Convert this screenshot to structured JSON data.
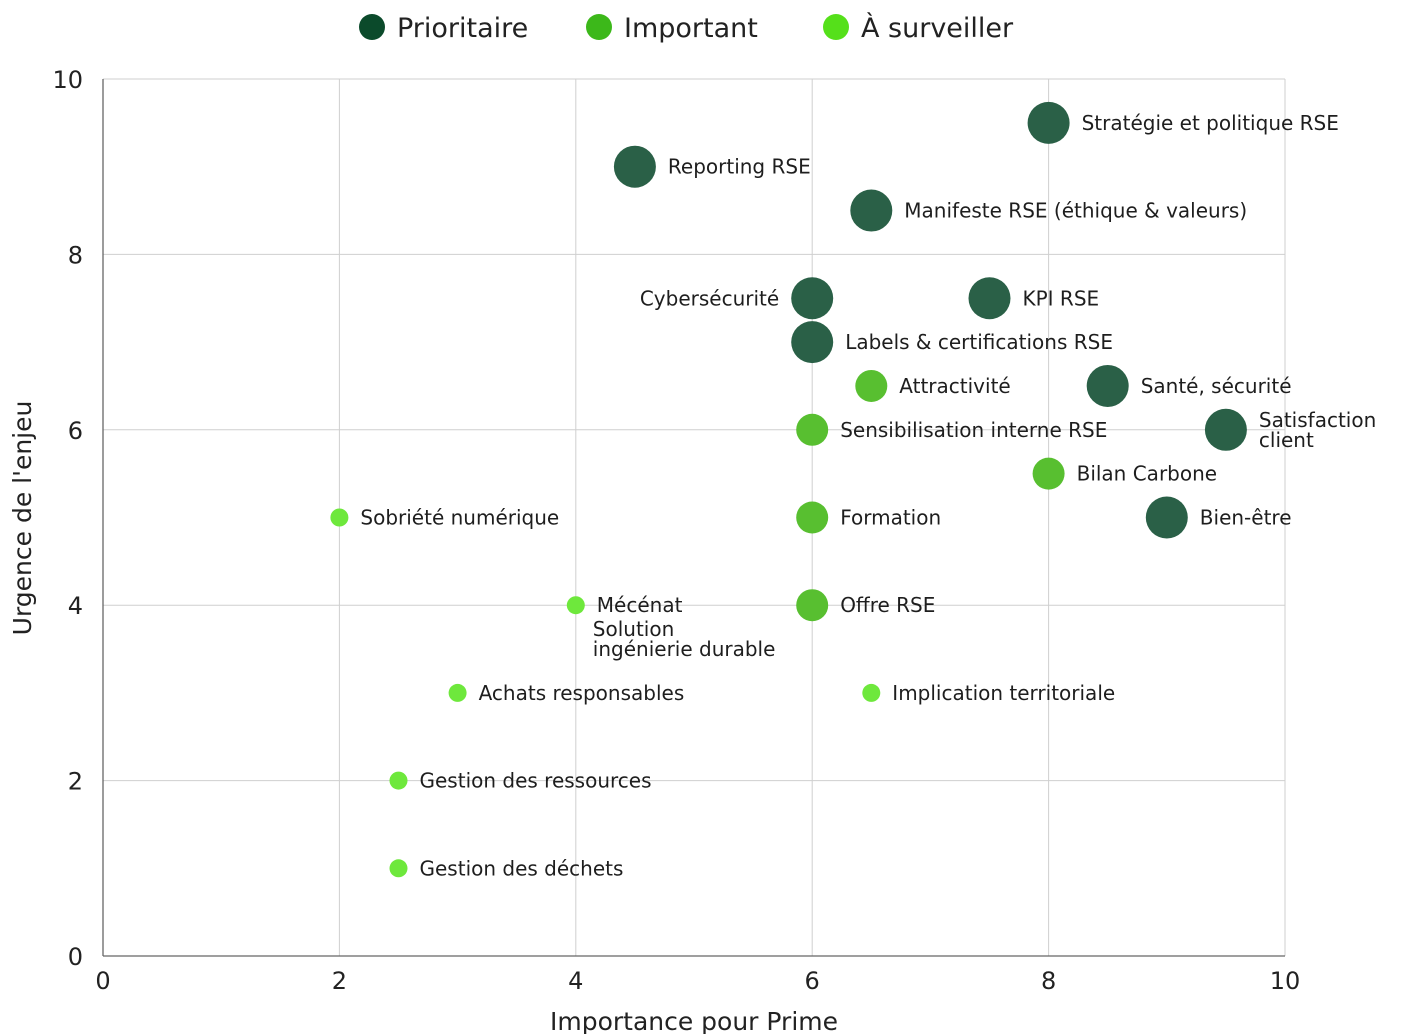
{
  "chart_data": {
    "type": "scatter",
    "xlabel": "Importance pour Prime",
    "ylabel": "Urgence de l'enjeu",
    "xlim": [
      0,
      10
    ],
    "ylim": [
      0,
      10
    ],
    "x_ticks": [
      0,
      2,
      4,
      6,
      8,
      10
    ],
    "y_ticks": [
      0,
      2,
      4,
      6,
      8,
      10
    ],
    "grid": true,
    "legend_position": "top-center",
    "categories": [
      {
        "key": "prioritaire",
        "name": "Prioritaire",
        "color": "#0b4a2b",
        "marker_color": "#2a6047",
        "bubble": "large"
      },
      {
        "key": "important",
        "name": "Important",
        "color": "#3cb81a",
        "marker_color": "#58bf30",
        "bubble": "medium"
      },
      {
        "key": "surveiller",
        "name": "À surveiller",
        "color": "#55e01a",
        "marker_color": "#6ee83c",
        "bubble": "small"
      }
    ],
    "points": [
      {
        "label": "Stratégie et politique RSE",
        "x": 8,
        "y": 9.5,
        "category": "prioritaire",
        "label_side": "right"
      },
      {
        "label": "Reporting RSE",
        "x": 4.5,
        "y": 9,
        "category": "prioritaire",
        "label_side": "right"
      },
      {
        "label": "Manifeste RSE (éthique & valeurs)",
        "x": 6.5,
        "y": 8.5,
        "category": "prioritaire",
        "label_side": "right"
      },
      {
        "label": "Cybersécurité",
        "x": 6,
        "y": 7.5,
        "category": "prioritaire",
        "label_side": "left"
      },
      {
        "label": "KPI RSE",
        "x": 7.5,
        "y": 7.5,
        "category": "prioritaire",
        "label_side": "right"
      },
      {
        "label": "Labels & certifications RSE",
        "x": 6,
        "y": 7,
        "category": "prioritaire",
        "label_side": "right"
      },
      {
        "label": "Attractivité",
        "x": 6.5,
        "y": 6.5,
        "category": "important",
        "label_side": "right"
      },
      {
        "label": "Santé, sécurité",
        "x": 8.5,
        "y": 6.5,
        "category": "prioritaire",
        "label_side": "right"
      },
      {
        "label": "Sensibilisation interne RSE",
        "x": 6,
        "y": 6,
        "category": "important",
        "label_side": "right"
      },
      {
        "label": "Satisfaction client",
        "x": 9.5,
        "y": 6,
        "category": "prioritaire",
        "label_side": "right",
        "label_lines": [
          "Satisfaction",
          "client"
        ]
      },
      {
        "label": "Bilan Carbone",
        "x": 8,
        "y": 5.5,
        "category": "important",
        "label_side": "right"
      },
      {
        "label": "Sobriété numérique",
        "x": 2,
        "y": 5,
        "category": "surveiller",
        "label_side": "right"
      },
      {
        "label": "Formation",
        "x": 6,
        "y": 5,
        "category": "important",
        "label_side": "right"
      },
      {
        "label": "Bien-être",
        "x": 9,
        "y": 5,
        "category": "prioritaire",
        "label_side": "right"
      },
      {
        "label": "Mécénat",
        "x": 4,
        "y": 4,
        "category": "surveiller",
        "label_side": "right"
      },
      {
        "label": "Solution ingénierie durable",
        "x": 4,
        "y": 4,
        "category": "surveiller",
        "label_side": "below-right",
        "label_lines": [
          "Solution",
          "ingénierie durable"
        ]
      },
      {
        "label": "Offre RSE",
        "x": 6,
        "y": 4,
        "category": "important",
        "label_side": "right"
      },
      {
        "label": "Achats responsables",
        "x": 3,
        "y": 3,
        "category": "surveiller",
        "label_side": "right"
      },
      {
        "label": "Implication territoriale",
        "x": 6.5,
        "y": 3,
        "category": "surveiller",
        "label_side": "right"
      },
      {
        "label": "Gestion des ressources",
        "x": 2.5,
        "y": 2,
        "category": "surveiller",
        "label_side": "right"
      },
      {
        "label": "Gestion des déchets",
        "x": 2.5,
        "y": 1,
        "category": "surveiller",
        "label_side": "right"
      }
    ]
  }
}
